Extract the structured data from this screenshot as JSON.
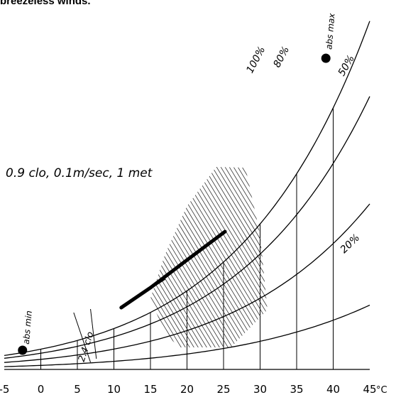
{
  "top_caption": "breezeless winds.",
  "chart_data": {
    "type": "line",
    "title": "",
    "subtitle": "0.9 clo, 0.1m/sec, 1 met",
    "xlabel": "°C",
    "xlim": [
      -5,
      45
    ],
    "xticks": [
      -5,
      0,
      5,
      10,
      15,
      20,
      25,
      30,
      35,
      40,
      45
    ],
    "x_unit": "°C",
    "grid": true,
    "humidity_curves": [
      {
        "label": "100%",
        "rh": 100
      },
      {
        "label": "80%",
        "rh": 80
      },
      {
        "label": "50%",
        "rh": 50
      },
      {
        "label": "20%",
        "rh": 20
      }
    ],
    "points": [
      {
        "label": "abs max",
        "t": 39
      },
      {
        "label": "abs min",
        "t": -2.5
      }
    ],
    "comfort_line": {
      "x": [
        11,
        15,
        20,
        25.2
      ]
    },
    "clo_marker": {
      "label": "2.4 clo",
      "x": 6
    },
    "comfort_zone": {
      "label": "hatched comfort zone",
      "x_range": [
        17,
        30
      ]
    }
  }
}
